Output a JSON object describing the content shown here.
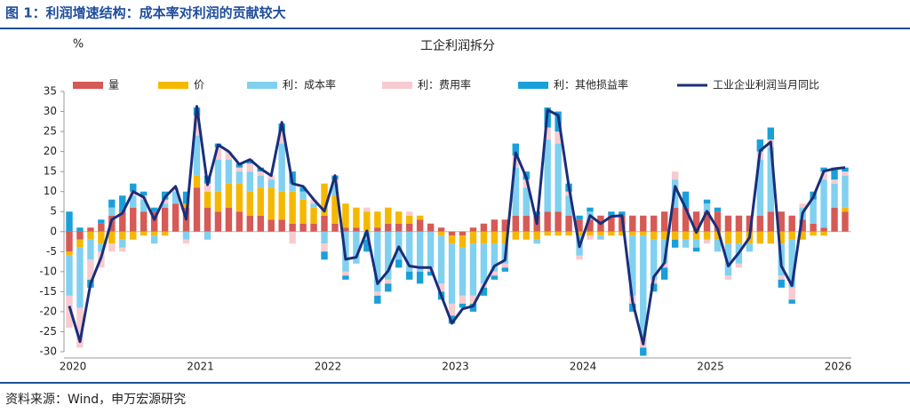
{
  "header": {
    "title": "图 1：利润增速结构：成本率对利润的贡献较大"
  },
  "footer": {
    "source": "资料来源：Wind，申万宏源研究"
  },
  "chart_data": {
    "type": "bar",
    "stacked": true,
    "title": "工企利润拆分",
    "y_label": "%",
    "legend": "top",
    "ylim": [
      -30,
      35
    ],
    "yticks": [
      -30,
      -25,
      -20,
      -15,
      -10,
      -5,
      0,
      5,
      10,
      15,
      20,
      25,
      30,
      35
    ],
    "categories": [
      "2020",
      null,
      null,
      null,
      null,
      null,
      null,
      null,
      null,
      null,
      null,
      null,
      "2021",
      null,
      null,
      null,
      null,
      null,
      null,
      null,
      null,
      null,
      null,
      null,
      "2022",
      null,
      null,
      null,
      null,
      null,
      null,
      null,
      null,
      null,
      null,
      null,
      "2023",
      null,
      null,
      null,
      null,
      null,
      null,
      null,
      null,
      null,
      null,
      null,
      "2024",
      null,
      null,
      null,
      null,
      null,
      null,
      null,
      null,
      null,
      null,
      null,
      "2025",
      null,
      null,
      null,
      null,
      null,
      null,
      null,
      null,
      null,
      null,
      null,
      "2026",
      null
    ],
    "series": [
      {
        "name": "量",
        "color": "#d65a56",
        "values": [
          -5,
          -2,
          1,
          2,
          4,
          5,
          6,
          5,
          5,
          6,
          7,
          6,
          11,
          6,
          5,
          6,
          5,
          4,
          4,
          3,
          3,
          2,
          2,
          2,
          4,
          2,
          1,
          1,
          0,
          1,
          2,
          2,
          2,
          3,
          2,
          1,
          -1,
          -1,
          1,
          2,
          3,
          3,
          4,
          4,
          4,
          5,
          5,
          4,
          3,
          3,
          4,
          4,
          4,
          4,
          4,
          4,
          5,
          6,
          6,
          5,
          5,
          5,
          4,
          4,
          4,
          4,
          5,
          5,
          4,
          3,
          2,
          1,
          6,
          5
        ]
      },
      {
        "name": "价",
        "color": "#f5b800",
        "values": [
          -1,
          -2,
          -2,
          -3,
          -3,
          -2,
          -2,
          -1,
          -1,
          -1,
          0,
          1,
          3,
          4,
          5,
          6,
          7,
          6,
          7,
          8,
          7,
          8,
          6,
          4,
          8,
          7,
          6,
          5,
          5,
          4,
          4,
          3,
          2,
          1,
          0,
          -1,
          -2,
          -3,
          -3,
          -3,
          -3,
          -3,
          -2,
          -2,
          -2,
          -1,
          -1,
          -1,
          -1,
          -1,
          -1,
          -1,
          -1,
          -1,
          -1,
          -2,
          -2,
          -2,
          -2,
          -2,
          -2,
          -2,
          -3,
          -3,
          -3,
          -3,
          -3,
          -3,
          -2,
          -2,
          -1,
          -1,
          0,
          1
        ]
      },
      {
        "name": "利：成本率",
        "color": "#80d0f0",
        "values": [
          -10,
          -15,
          -5,
          -2,
          2,
          -2,
          3,
          3,
          -2,
          1,
          3,
          -2,
          10,
          -2,
          8,
          6,
          3,
          5,
          3,
          2,
          12,
          2,
          2,
          1,
          -3,
          3,
          -10,
          -8,
          -2,
          -15,
          -12,
          -7,
          -10,
          -10,
          -9,
          -12,
          -15,
          -12,
          -13,
          -10,
          -7,
          -5,
          12,
          7,
          -1,
          18,
          17,
          5,
          -5,
          2,
          -1,
          0,
          0,
          -15,
          -25,
          -10,
          -6,
          7,
          -2,
          -2,
          2,
          -3,
          -8,
          -5,
          -2,
          14,
          16,
          -8,
          -12,
          3,
          6,
          12,
          6,
          8
        ]
      },
      {
        "name": "利：费用率",
        "color": "#f7cbcf",
        "values": [
          -8,
          -10,
          -5,
          -4,
          -2,
          -1,
          1,
          1,
          0,
          1,
          1,
          -1,
          5,
          2,
          3,
          2,
          1,
          2,
          1,
          1,
          3,
          -3,
          0,
          1,
          -2,
          1,
          -1,
          0,
          1,
          -1,
          -1,
          0,
          1,
          0,
          -1,
          -2,
          -3,
          -2,
          -2,
          -1,
          -1,
          -1,
          3,
          2,
          0,
          3,
          3,
          1,
          -1,
          -1,
          0,
          0,
          0,
          -2,
          -3,
          -1,
          -1,
          2,
          0,
          0,
          -1,
          0,
          -1,
          -1,
          0,
          2,
          2,
          -1,
          -3,
          1,
          0,
          2,
          1,
          1
        ]
      },
      {
        "name": "利：其他损益率",
        "color": "#1aa0d8",
        "values": [
          5,
          1,
          -2,
          1,
          2,
          4,
          2,
          1,
          1,
          2,
          0,
          3,
          2,
          2,
          1,
          0,
          1,
          1,
          1,
          0,
          2,
          3,
          1,
          0,
          -2,
          1,
          -1,
          0,
          -3,
          -2,
          -2,
          -2,
          -2,
          -3,
          -1,
          -2,
          -2,
          -1,
          -2,
          -2,
          -1,
          -1,
          3,
          2,
          1,
          5,
          5,
          2,
          1,
          1,
          0,
          1,
          1,
          -2,
          -2,
          -2,
          -3,
          -2,
          4,
          -1,
          1,
          1,
          0,
          0,
          0,
          3,
          3,
          -2,
          -1,
          0,
          2,
          1,
          3,
          1
        ]
      },
      {
        "name": "工业企业利润当月同比",
        "type": "line",
        "color": "#1a2e7a",
        "values": [
          -18.6,
          -27.5,
          -13,
          -6.4,
          3,
          4.6,
          10,
          8.6,
          3,
          8.6,
          11.3,
          3.1,
          31.3,
          11.7,
          21.7,
          20,
          16.8,
          18,
          15.7,
          14,
          27.3,
          12,
          11.3,
          8,
          5.1,
          14,
          -6.9,
          -6.4,
          0.2,
          -13,
          -9.8,
          -3.8,
          -8.6,
          -9,
          -9,
          -16,
          -22.9,
          -19.3,
          -18.6,
          -13.5,
          -8.6,
          -7.1,
          19.7,
          13.5,
          2,
          30.4,
          29,
          11.3,
          -3.8,
          4,
          2,
          3.8,
          4,
          -17.5,
          -28.1,
          -11.3,
          -7.8,
          11.3,
          5.8,
          -0.2,
          5.1,
          0.7,
          -8.6,
          -5.3,
          -1.5,
          20.2,
          22.4,
          -8.6,
          -13.5,
          4.7,
          8.6,
          15.1,
          15.7,
          16
        ]
      }
    ]
  }
}
